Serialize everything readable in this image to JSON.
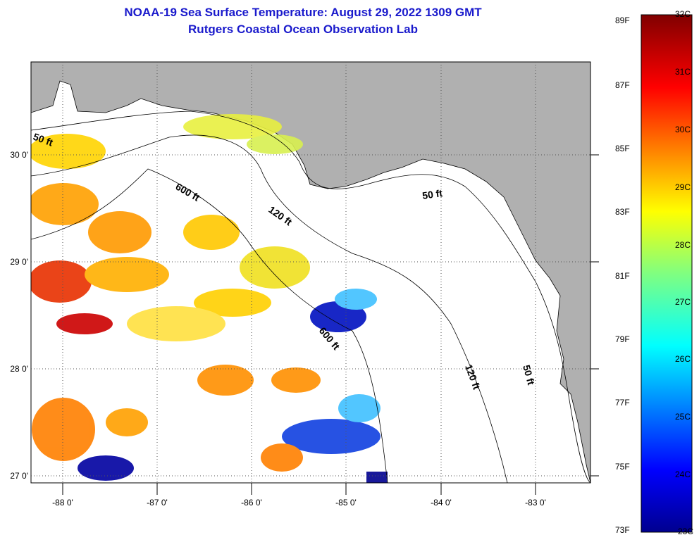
{
  "title": {
    "line1": "NOAA-19 Sea Surface Temperature:  August 29, 2022 1309 GMT",
    "line2": "Rutgers Coastal Ocean Observation Lab"
  },
  "map": {
    "lon_labels": [
      "-88 0'",
      "-87 0'",
      "-86 0'",
      "-85 0'",
      "-84 0'",
      "-83 0'"
    ],
    "lat_labels": [
      "30 0'",
      "29 0'",
      "28 0'",
      "27 0'"
    ],
    "contour_labels": [
      "50 ft",
      "600 ft",
      "120 ft",
      "50 ft",
      "600 ft",
      "120 ft",
      "50 ft"
    ],
    "colors": {
      "land": "#b0b0b0",
      "ocean": "#ffffff",
      "title": "#1a1acc"
    }
  },
  "colorbar": {
    "f_labels": [
      "89F",
      "87F",
      "85F",
      "83F",
      "81F",
      "79F",
      "77F",
      "75F",
      "73F"
    ],
    "c_labels": [
      "32C",
      "31C",
      "30C",
      "29C",
      "28C",
      "27C",
      "26C",
      "25C",
      "24C",
      "23C"
    ],
    "range_c": [
      23,
      32
    ]
  }
}
